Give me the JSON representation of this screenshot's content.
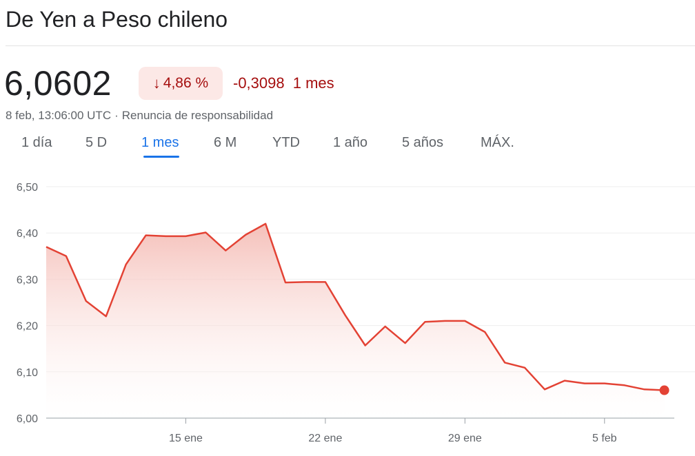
{
  "header": {
    "title": "De Yen a Peso chileno"
  },
  "quote": {
    "price": "6,0602",
    "change_pct": "4,86 %",
    "change_abs": "-0,3098",
    "period": "1 mes",
    "timestamp": "8 feb, 13:06:00 UTC",
    "disclaimer": "Renuncia de responsabilidad",
    "separator": "·"
  },
  "tabs": [
    "1 día",
    "5 D",
    "1 mes",
    "6 M",
    "YTD",
    "1 año",
    "5 años",
    "MÁX."
  ],
  "active_tab": "1 mes",
  "colors": {
    "line": "#e34234",
    "fill_top": "#f4b9b2",
    "negative": "#a50e0e",
    "badge_bg": "#fce8e6",
    "accent": "#1a73e8"
  },
  "chart_data": {
    "type": "area",
    "title": "",
    "xlabel": "",
    "ylabel": "",
    "ylim": [
      6.0,
      6.5
    ],
    "ytick_labels": [
      "6,00",
      "6,10",
      "6,20",
      "6,30",
      "6,40",
      "6,50"
    ],
    "yticks": [
      6.0,
      6.1,
      6.2,
      6.3,
      6.4,
      6.5
    ],
    "xtick_labels": [
      "15 ene",
      "22 ene",
      "29 ene",
      "5 feb"
    ],
    "xticks": [
      15,
      22,
      29,
      36
    ],
    "xlim": [
      8.0,
      39.5
    ],
    "grid": true,
    "series": [
      {
        "x": [
          8.0,
          9.0,
          10.0,
          11.0,
          12.0,
          13.0,
          14.0,
          15.0,
          16.0,
          17.0,
          18.0,
          19.0,
          20.0,
          21.0,
          22.0,
          23.0,
          24.0,
          25.0,
          26.0,
          27.0,
          28.0,
          29.0,
          30.0,
          31.0,
          32.0,
          33.0,
          34.0,
          35.0,
          36.0,
          37.0,
          38.0,
          39.0
        ],
        "values": [
          6.37,
          6.35,
          6.253,
          6.22,
          6.332,
          6.395,
          6.393,
          6.393,
          6.401,
          6.362,
          6.396,
          6.42,
          6.293,
          6.294,
          6.294,
          6.222,
          6.157,
          6.198,
          6.162,
          6.208,
          6.21,
          6.21,
          6.186,
          6.12,
          6.109,
          6.062,
          6.081,
          6.075,
          6.075,
          6.071,
          6.062,
          6.0602
        ]
      }
    ]
  }
}
